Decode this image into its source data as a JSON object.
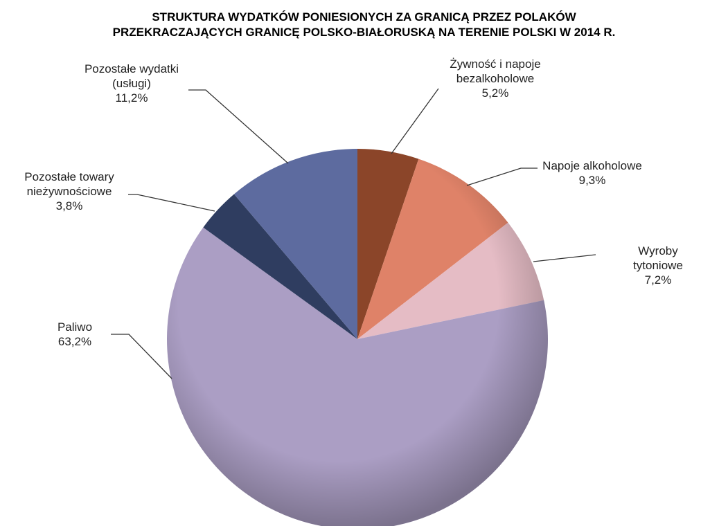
{
  "chart_data": {
    "type": "pie",
    "title": "STRUKTURA WYDATKÓW PONIESIONYCH ZA GRANICĄ PRZEZ POLAKÓW\nPRZEKRACZAJĄCYCH GRANICĘ POLSKO-BIAŁORUSKĄ NA TERENIE POLSKI W 2014 R.",
    "categories": [
      "Żywność i napoje\nbezalkoholowe",
      "Napoje alkoholowe",
      "Wyroby tytoniowe",
      "Paliwo",
      "Pozostałe towary\nnieżywnościowe",
      "Pozostałe wydatki\n(usługi)"
    ],
    "values": [
      5.2,
      9.3,
      7.2,
      63.2,
      3.8,
      11.2
    ],
    "value_labels": [
      "5,2%",
      "9,3%",
      "7,2%",
      "63,2%",
      "3,8%",
      "11,2%"
    ],
    "colors": [
      "#8b4529",
      "#df8268",
      "#e5bcc5",
      "#ab9ec4",
      "#2f3d60",
      "#5d6b9f"
    ]
  }
}
